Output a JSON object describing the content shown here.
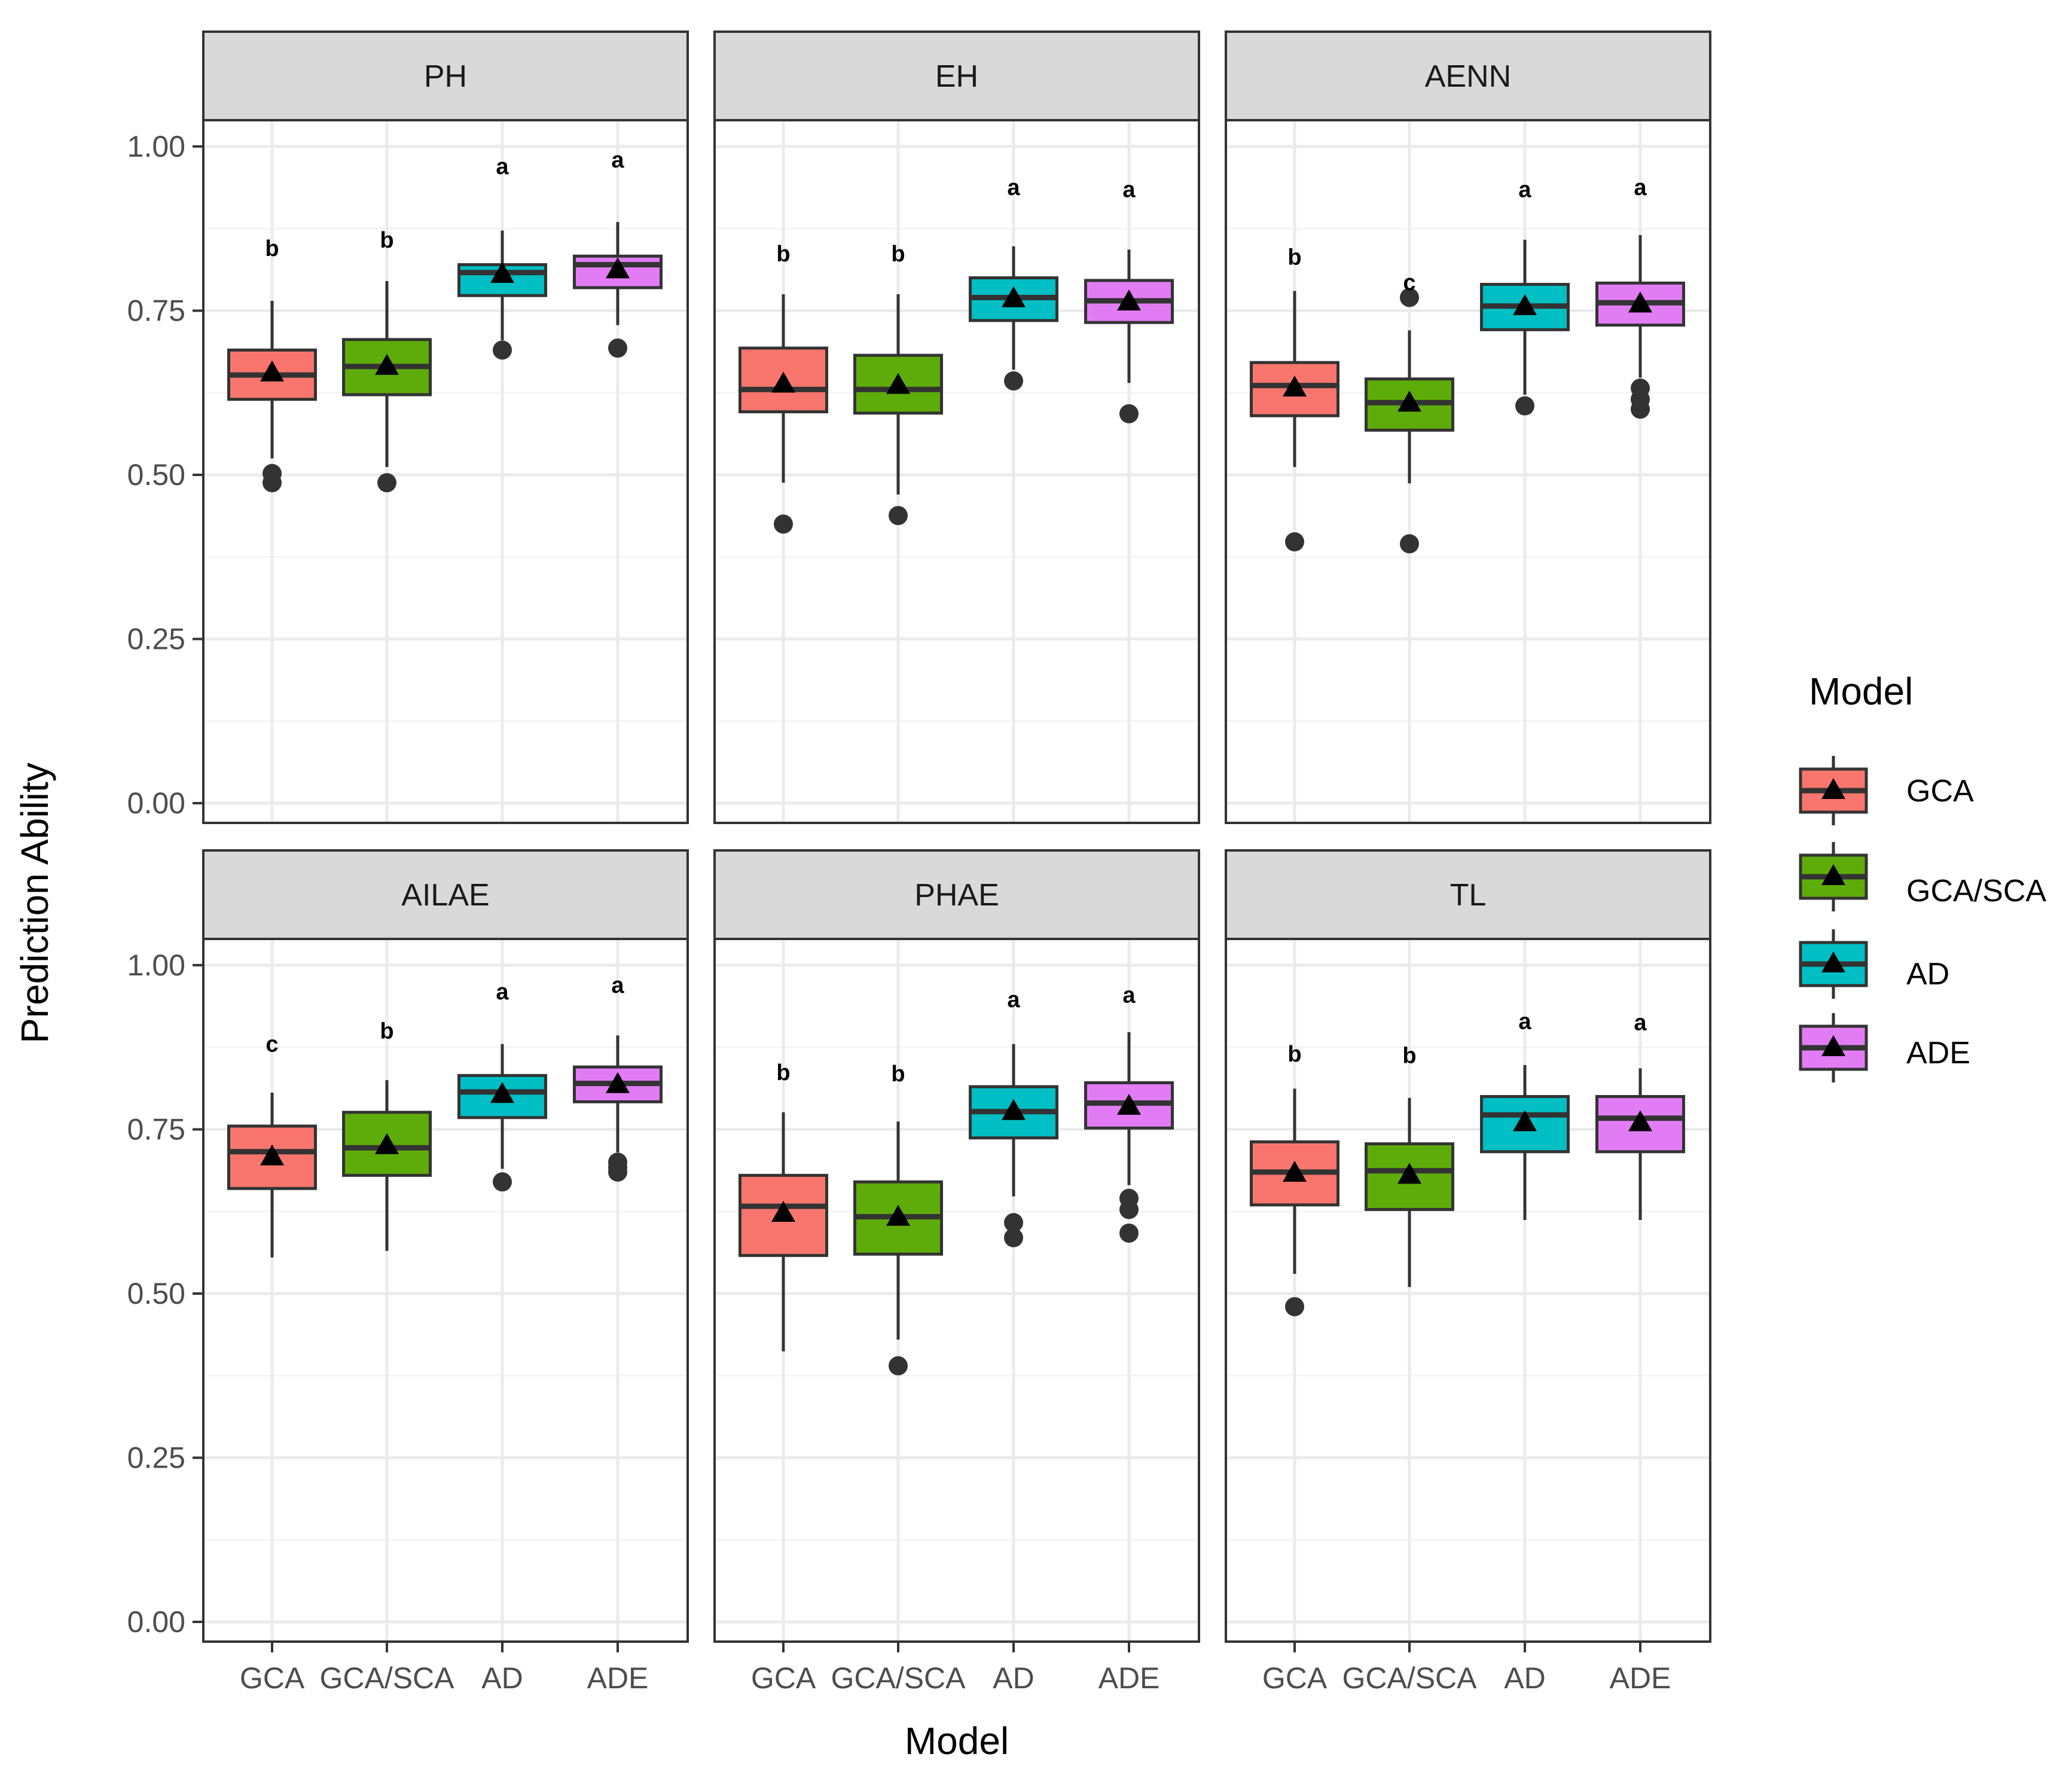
{
  "chart_data": {
    "type": "box",
    "xlabel": "Model",
    "ylabel": "Prediction Ability",
    "ylim": [
      -0.03,
      1.04
    ],
    "yticks": [
      0.0,
      0.25,
      0.5,
      0.75,
      1.0
    ],
    "ytick_labels": [
      "0.00",
      "0.25",
      "0.50",
      "0.75",
      "1.00"
    ],
    "grid": true,
    "categories": [
      "GCA",
      "GCA/SCA",
      "AD",
      "ADE"
    ],
    "colors": [
      "#f8766d",
      "#5eac0a",
      "#00bfc4",
      "#e27cf5"
    ],
    "legend": {
      "title": "Model",
      "position": "right",
      "labels": [
        "GCA",
        "GCA/SCA",
        "AD",
        "ADE"
      ]
    },
    "panels": [
      {
        "title": "PH",
        "boxes": [
          {
            "q1": 0.615,
            "median": 0.652,
            "q3": 0.69,
            "whisker_low": 0.525,
            "whisker_high": 0.765,
            "mean": 0.655,
            "outliers": [
              0.502,
              0.488
            ],
            "letter": "b",
            "letter_y": 0.845
          },
          {
            "q1": 0.622,
            "median": 0.665,
            "q3": 0.706,
            "whisker_low": 0.512,
            "whisker_high": 0.795,
            "mean": 0.665,
            "outliers": [
              0.488
            ],
            "letter": "b",
            "letter_y": 0.858
          },
          {
            "q1": 0.773,
            "median": 0.808,
            "q3": 0.82,
            "whisker_low": 0.705,
            "whisker_high": 0.872,
            "mean": 0.805,
            "outliers": [
              0.69
            ],
            "letter": "a",
            "letter_y": 0.97
          },
          {
            "q1": 0.785,
            "median": 0.82,
            "q3": 0.833,
            "whisker_low": 0.728,
            "whisker_high": 0.885,
            "mean": 0.812,
            "outliers": [
              0.693
            ],
            "letter": "a",
            "letter_y": 0.98
          }
        ]
      },
      {
        "title": "EH",
        "boxes": [
          {
            "q1": 0.596,
            "median": 0.63,
            "q3": 0.693,
            "whisker_low": 0.488,
            "whisker_high": 0.775,
            "mean": 0.638,
            "outliers": [
              0.425
            ],
            "letter": "b",
            "letter_y": 0.837
          },
          {
            "q1": 0.594,
            "median": 0.63,
            "q3": 0.682,
            "whisker_low": 0.47,
            "whisker_high": 0.775,
            "mean": 0.636,
            "outliers": [
              0.438
            ],
            "letter": "b",
            "letter_y": 0.837
          },
          {
            "q1": 0.735,
            "median": 0.77,
            "q3": 0.8,
            "whisker_low": 0.66,
            "whisker_high": 0.848,
            "mean": 0.768,
            "outliers": [
              0.643
            ],
            "letter": "a",
            "letter_y": 0.938
          },
          {
            "q1": 0.732,
            "median": 0.765,
            "q3": 0.796,
            "whisker_low": 0.64,
            "whisker_high": 0.843,
            "mean": 0.763,
            "outliers": [
              0.593
            ],
            "letter": "a",
            "letter_y": 0.935
          }
        ]
      },
      {
        "title": "AENN",
        "boxes": [
          {
            "q1": 0.59,
            "median": 0.636,
            "q3": 0.671,
            "whisker_low": 0.512,
            "whisker_high": 0.78,
            "mean": 0.632,
            "outliers": [
              0.398
            ],
            "letter": "b",
            "letter_y": 0.832
          },
          {
            "q1": 0.568,
            "median": 0.61,
            "q3": 0.646,
            "whisker_low": 0.487,
            "whisker_high": 0.72,
            "mean": 0.609,
            "outliers": [
              0.77,
              0.395
            ],
            "letter": "c",
            "letter_y": 0.793
          },
          {
            "q1": 0.721,
            "median": 0.757,
            "q3": 0.79,
            "whisker_low": 0.622,
            "whisker_high": 0.858,
            "mean": 0.756,
            "outliers": [
              0.605
            ],
            "letter": "a",
            "letter_y": 0.935
          },
          {
            "q1": 0.728,
            "median": 0.762,
            "q3": 0.792,
            "whisker_low": 0.648,
            "whisker_high": 0.865,
            "mean": 0.76,
            "outliers": [
              0.632,
              0.615,
              0.6
            ],
            "letter": "a",
            "letter_y": 0.938
          }
        ]
      },
      {
        "title": "AILAE",
        "boxes": [
          {
            "q1": 0.66,
            "median": 0.716,
            "q3": 0.755,
            "whisker_low": 0.555,
            "whisker_high": 0.806,
            "mean": 0.708,
            "outliers": [],
            "letter": "c",
            "letter_y": 0.88
          },
          {
            "q1": 0.68,
            "median": 0.722,
            "q3": 0.776,
            "whisker_low": 0.565,
            "whisker_high": 0.825,
            "mean": 0.725,
            "outliers": [],
            "letter": "b",
            "letter_y": 0.9
          },
          {
            "q1": 0.768,
            "median": 0.807,
            "q3": 0.832,
            "whisker_low": 0.69,
            "whisker_high": 0.88,
            "mean": 0.803,
            "outliers": [
              0.67
            ],
            "letter": "a",
            "letter_y": 0.96
          },
          {
            "q1": 0.792,
            "median": 0.82,
            "q3": 0.845,
            "whisker_low": 0.715,
            "whisker_high": 0.893,
            "mean": 0.818,
            "outliers": [
              0.7,
              0.692,
              0.685
            ],
            "letter": "a",
            "letter_y": 0.97
          }
        ]
      },
      {
        "title": "PHAE",
        "boxes": [
          {
            "q1": 0.558,
            "median": 0.633,
            "q3": 0.68,
            "whisker_low": 0.412,
            "whisker_high": 0.776,
            "mean": 0.622,
            "outliers": [],
            "letter": "b",
            "letter_y": 0.837
          },
          {
            "q1": 0.56,
            "median": 0.617,
            "q3": 0.67,
            "whisker_low": 0.43,
            "whisker_high": 0.762,
            "mean": 0.616,
            "outliers": [
              0.39
            ],
            "letter": "b",
            "letter_y": 0.835
          },
          {
            "q1": 0.737,
            "median": 0.777,
            "q3": 0.815,
            "whisker_low": 0.648,
            "whisker_high": 0.88,
            "mean": 0.777,
            "outliers": [
              0.608,
              0.585
            ],
            "letter": "a",
            "letter_y": 0.948
          },
          {
            "q1": 0.752,
            "median": 0.79,
            "q3": 0.821,
            "whisker_low": 0.665,
            "whisker_high": 0.898,
            "mean": 0.785,
            "outliers": [
              0.645,
              0.628,
              0.592
            ],
            "letter": "a",
            "letter_y": 0.955
          }
        ]
      },
      {
        "title": "TL",
        "boxes": [
          {
            "q1": 0.635,
            "median": 0.685,
            "q3": 0.731,
            "whisker_low": 0.53,
            "whisker_high": 0.812,
            "mean": 0.683,
            "outliers": [
              0.48
            ],
            "letter": "b",
            "letter_y": 0.865
          },
          {
            "q1": 0.628,
            "median": 0.687,
            "q3": 0.728,
            "whisker_low": 0.51,
            "whisker_high": 0.798,
            "mean": 0.68,
            "outliers": [],
            "letter": "b",
            "letter_y": 0.863
          },
          {
            "q1": 0.716,
            "median": 0.772,
            "q3": 0.8,
            "whisker_low": 0.612,
            "whisker_high": 0.848,
            "mean": 0.76,
            "outliers": [],
            "letter": "a",
            "letter_y": 0.915
          },
          {
            "q1": 0.716,
            "median": 0.767,
            "q3": 0.8,
            "whisker_low": 0.612,
            "whisker_high": 0.843,
            "mean": 0.76,
            "outliers": [],
            "letter": "a",
            "letter_y": 0.913
          }
        ]
      }
    ]
  }
}
